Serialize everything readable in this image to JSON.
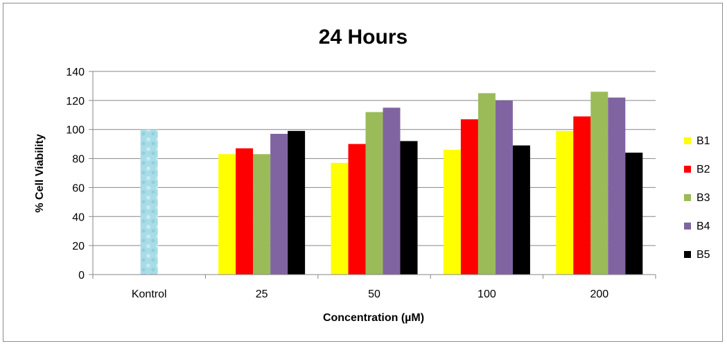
{
  "chart_data": {
    "type": "bar",
    "title": "24 Hours",
    "xlabel": "Concentration (µM)",
    "ylabel": "% Cell Viability",
    "ylim": [
      0,
      140
    ],
    "yticks": [
      "0",
      "20",
      "40",
      "60",
      "80",
      "100",
      "120",
      "140"
    ],
    "grid": true,
    "legend_position": "right",
    "categories": [
      "Kontrol",
      "25",
      "50",
      "100",
      "200"
    ],
    "control": {
      "category": "Kontrol",
      "value": 100,
      "color": "#a8dce6"
    },
    "series": [
      {
        "name": "B1",
        "color": "#ffff00",
        "values": [
          null,
          83,
          77,
          86,
          99
        ]
      },
      {
        "name": "B2",
        "color": "#ff0000",
        "values": [
          null,
          87,
          90,
          107,
          109
        ]
      },
      {
        "name": "B3",
        "color": "#9bbb59",
        "values": [
          null,
          83,
          112,
          125,
          126
        ]
      },
      {
        "name": "B4",
        "color": "#8064a2",
        "values": [
          null,
          97,
          115,
          120,
          122
        ]
      },
      {
        "name": "B5",
        "color": "#000000",
        "values": [
          null,
          99,
          92,
          89,
          84
        ]
      }
    ]
  }
}
